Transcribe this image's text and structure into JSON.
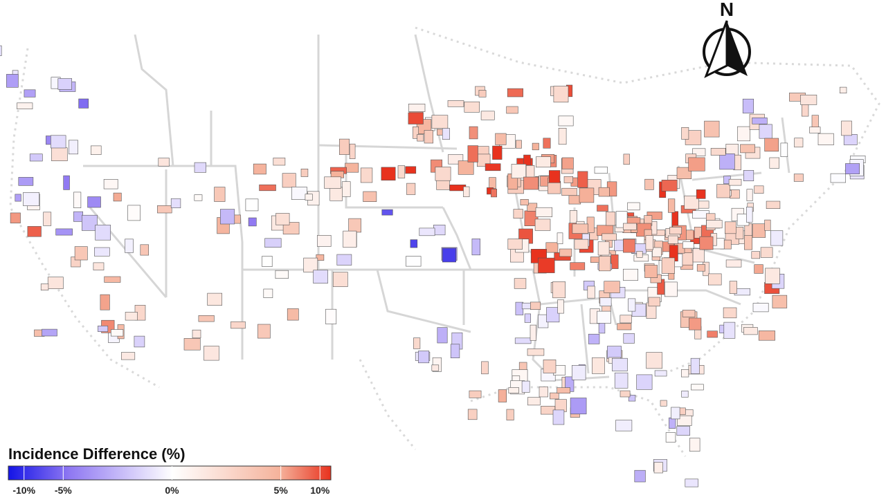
{
  "compass": {
    "label": "N"
  },
  "legend": {
    "title": "Incidence Difference (%)",
    "scale": "symlog",
    "lim": [
      -13,
      12
    ],
    "ticks": [
      {
        "value": -10,
        "label": "-10%"
      },
      {
        "value": -5,
        "label": "-5%"
      },
      {
        "value": 0,
        "label": "0%"
      },
      {
        "value": 5,
        "label": "5%"
      },
      {
        "value": 10,
        "label": "10%"
      }
    ]
  }
}
